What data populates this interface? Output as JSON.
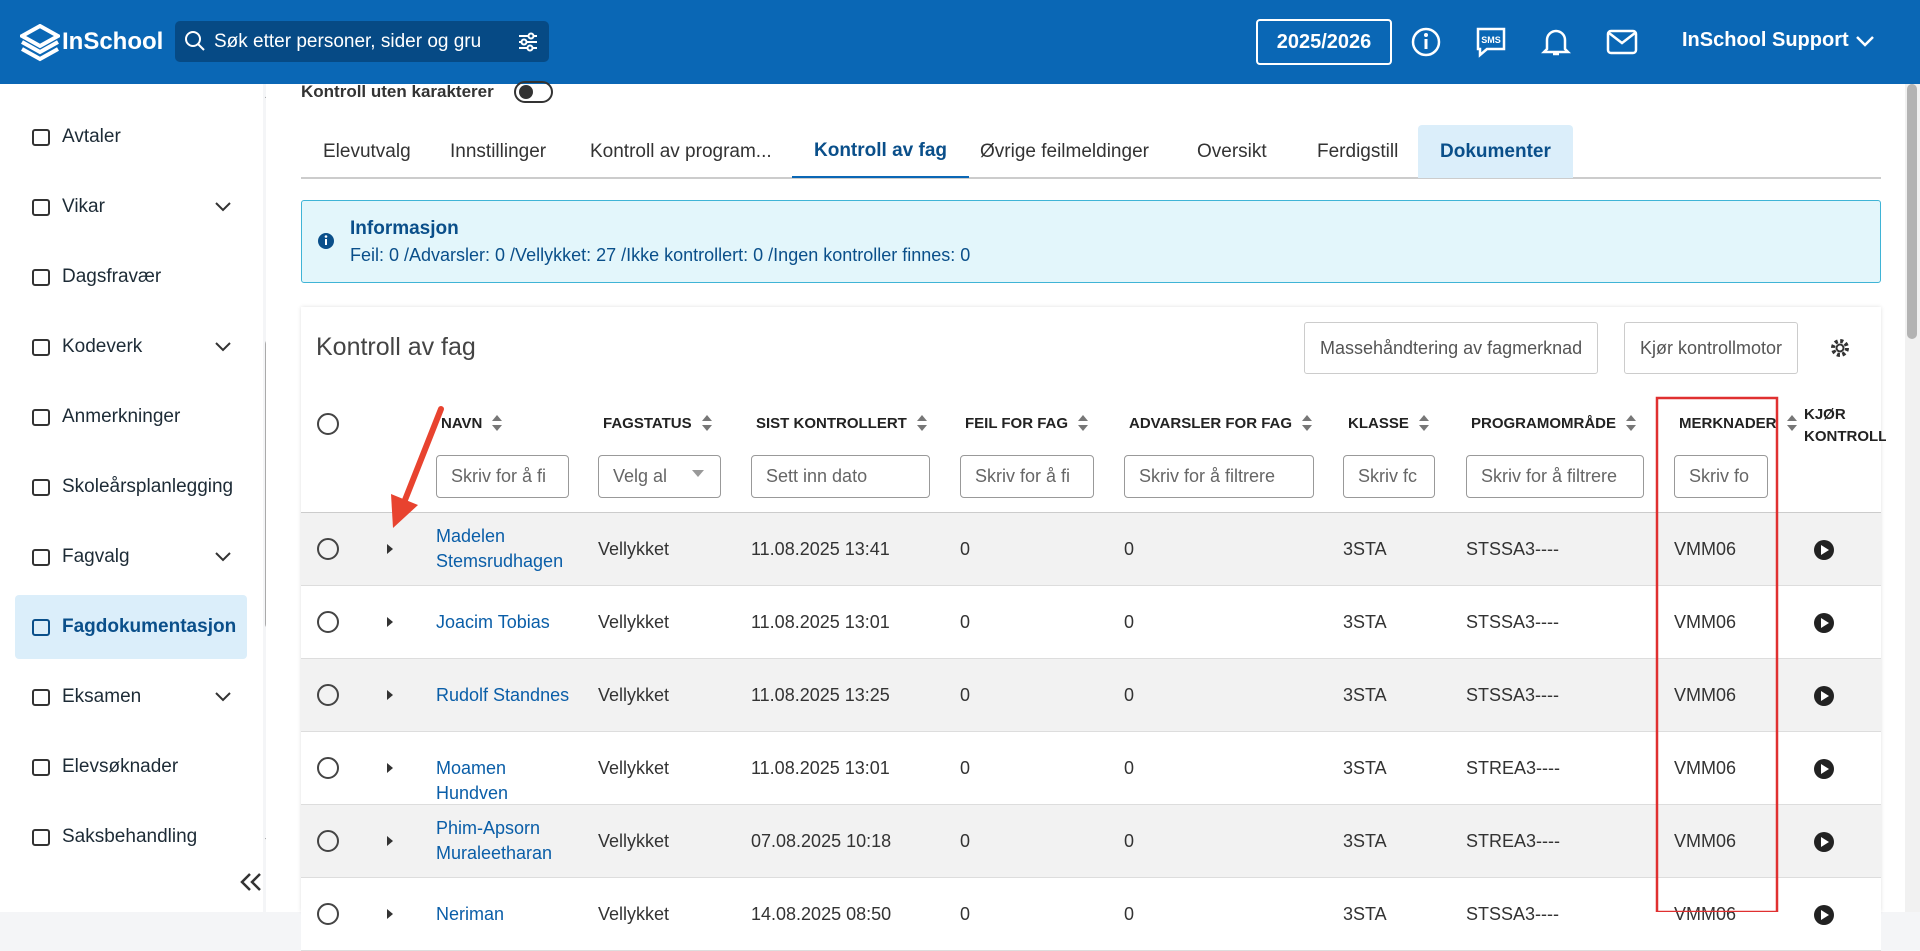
{
  "header": {
    "logo": "InSchool",
    "search_placeholder": "Søk etter personer, sider og gru",
    "year": "2025/2026",
    "user": "InSchool Support"
  },
  "sidebar": {
    "items": [
      {
        "label": "Avtaler"
      },
      {
        "label": "Vikar",
        "expandable": true
      },
      {
        "label": "Dagsfravær"
      },
      {
        "label": "Kodeverk",
        "expandable": true
      },
      {
        "label": "Anmerkninger"
      },
      {
        "label": "Skoleårsplanlegging"
      },
      {
        "label": "Fagvalg",
        "expandable": true
      },
      {
        "label": "Fagdokumentasjon",
        "active": true
      },
      {
        "label": "Eksamen",
        "expandable": true
      },
      {
        "label": "Elevsøknader"
      },
      {
        "label": "Saksbehandling"
      }
    ]
  },
  "toggle": {
    "label": "Kontroll uten karakterer"
  },
  "tabs": {
    "items": [
      {
        "label": "Elevutvalg"
      },
      {
        "label": "Innstillinger"
      },
      {
        "label": "Kontroll av program..."
      },
      {
        "label": "Kontroll av fag",
        "active": true
      },
      {
        "label": "Øvrige feilmeldinger"
      },
      {
        "label": "Oversikt"
      },
      {
        "label": "Ferdigstill"
      },
      {
        "label": "Dokumenter",
        "highlighted": true
      }
    ]
  },
  "info": {
    "title": "Informasjon",
    "text": "Feil: 0 /Advarsler: 0 /Vellykket: 27 /Ikke kontrollert: 0 /Ingen kontroller finnes: 0"
  },
  "panel": {
    "title": "Kontroll av fag",
    "buttons": [
      "Massehåndtering av fagmerknad",
      "Kjør kontrollmotor"
    ]
  },
  "table": {
    "columns": [
      {
        "label": "NAVN",
        "filter": "Skriv for å fi"
      },
      {
        "label": "FAGSTATUS",
        "filter": "Velg al"
      },
      {
        "label": "SIST KONTROLLERT",
        "filter": "Sett inn dato"
      },
      {
        "label": "FEIL FOR FAG",
        "filter": "Skriv for å fi"
      },
      {
        "label": "ADVARSLER FOR FAG",
        "filter": "Skriv for å filtrere"
      },
      {
        "label": "KLASSE",
        "filter": "Skriv fc"
      },
      {
        "label": "PROGRAMOMRÅDE",
        "filter": "Skriv for å filtrere"
      },
      {
        "label": "MERKNADER",
        "filter": "Skriv fo"
      },
      {
        "label": "KJØR KONTROLL"
      }
    ],
    "rows": [
      [
        "Madelen Stemsrudhagen",
        "Vellykket",
        "11.08.2025 13:41",
        "0",
        "0",
        "3STA",
        "STSSA3----",
        "VMM06"
      ],
      [
        "Joacim Tobias",
        "Vellykket",
        "11.08.2025 13:01",
        "0",
        "0",
        "3STA",
        "STSSA3----",
        "VMM06"
      ],
      [
        "Rudolf Standnes",
        "Vellykket",
        "11.08.2025 13:25",
        "0",
        "0",
        "3STA",
        "STSSA3----",
        "VMM06"
      ],
      [
        "Moamen Hundven",
        "Vellykket",
        "11.08.2025 13:01",
        "0",
        "0",
        "3STA",
        "STREA3----",
        "VMM06"
      ],
      [
        "Phim-Apsorn Muraleetharan",
        "Vellykket",
        "07.08.2025 10:18",
        "0",
        "0",
        "3STA",
        "STREA3----",
        "VMM06"
      ],
      [
        "Neriman",
        "Vellykket",
        "14.08.2025 08:50",
        "0",
        "0",
        "3STA",
        "STSSA3----",
        "VMM06"
      ]
    ]
  }
}
